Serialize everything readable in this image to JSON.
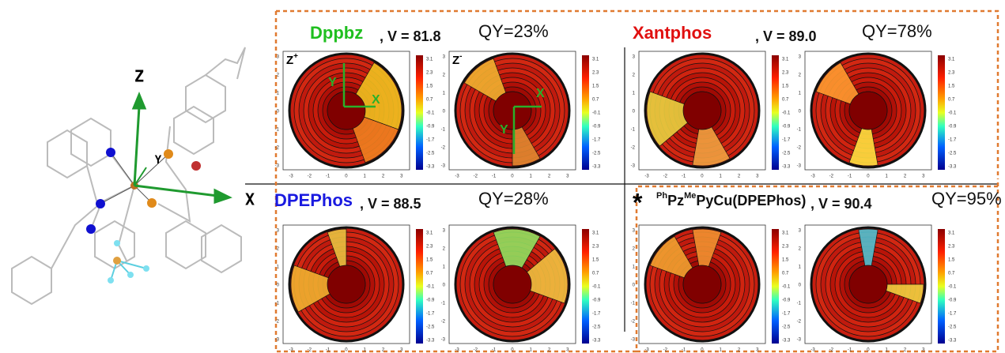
{
  "molecule_axes": {
    "z": "Z",
    "y": "Y",
    "x": "X"
  },
  "colorbar_ticks": [
    "3.1",
    "2.3",
    "1.5",
    "0.7",
    "-0.1",
    "-0.9",
    "-1.7",
    "-2.5",
    "-3.3"
  ],
  "axis_ticks": [
    "-3",
    "-2",
    "-1",
    "0",
    "1",
    "2",
    "3"
  ],
  "inset_axes": {
    "x": "X",
    "y": "Y"
  },
  "plot_labels": [
    {
      "base": "Z",
      "sup": "+"
    },
    {
      "base": "Z",
      "sup": "-"
    }
  ],
  "panels": [
    {
      "name_parts": [
        {
          "text": "Dppbz",
          "sup": false
        }
      ],
      "name_color": "#1fbf1f",
      "volume": ", V = 81.8",
      "qy": "QY=23%"
    },
    {
      "name_parts": [
        {
          "text": "Xantphos",
          "sup": false
        }
      ],
      "name_color": "#e01010",
      "volume": ", V = 89.0",
      "qy": "QY=78%"
    },
    {
      "name_parts": [
        {
          "text": "DPEPhos",
          "sup": false
        }
      ],
      "name_color": "#1a1ae0",
      "volume": ", V = 88.5",
      "qy": "QY=28%"
    },
    {
      "marker": "*",
      "name_parts": [
        {
          "text": "Ph",
          "sup": true
        },
        {
          "text": "Pz",
          "sup": false
        },
        {
          "text": "Me",
          "sup": true
        },
        {
          "text": "PyCu(DPEPhos)",
          "sup": false
        }
      ],
      "name_color": "#111111",
      "volume": ", V = 90.4",
      "qy": "QY=95%"
    }
  ]
}
